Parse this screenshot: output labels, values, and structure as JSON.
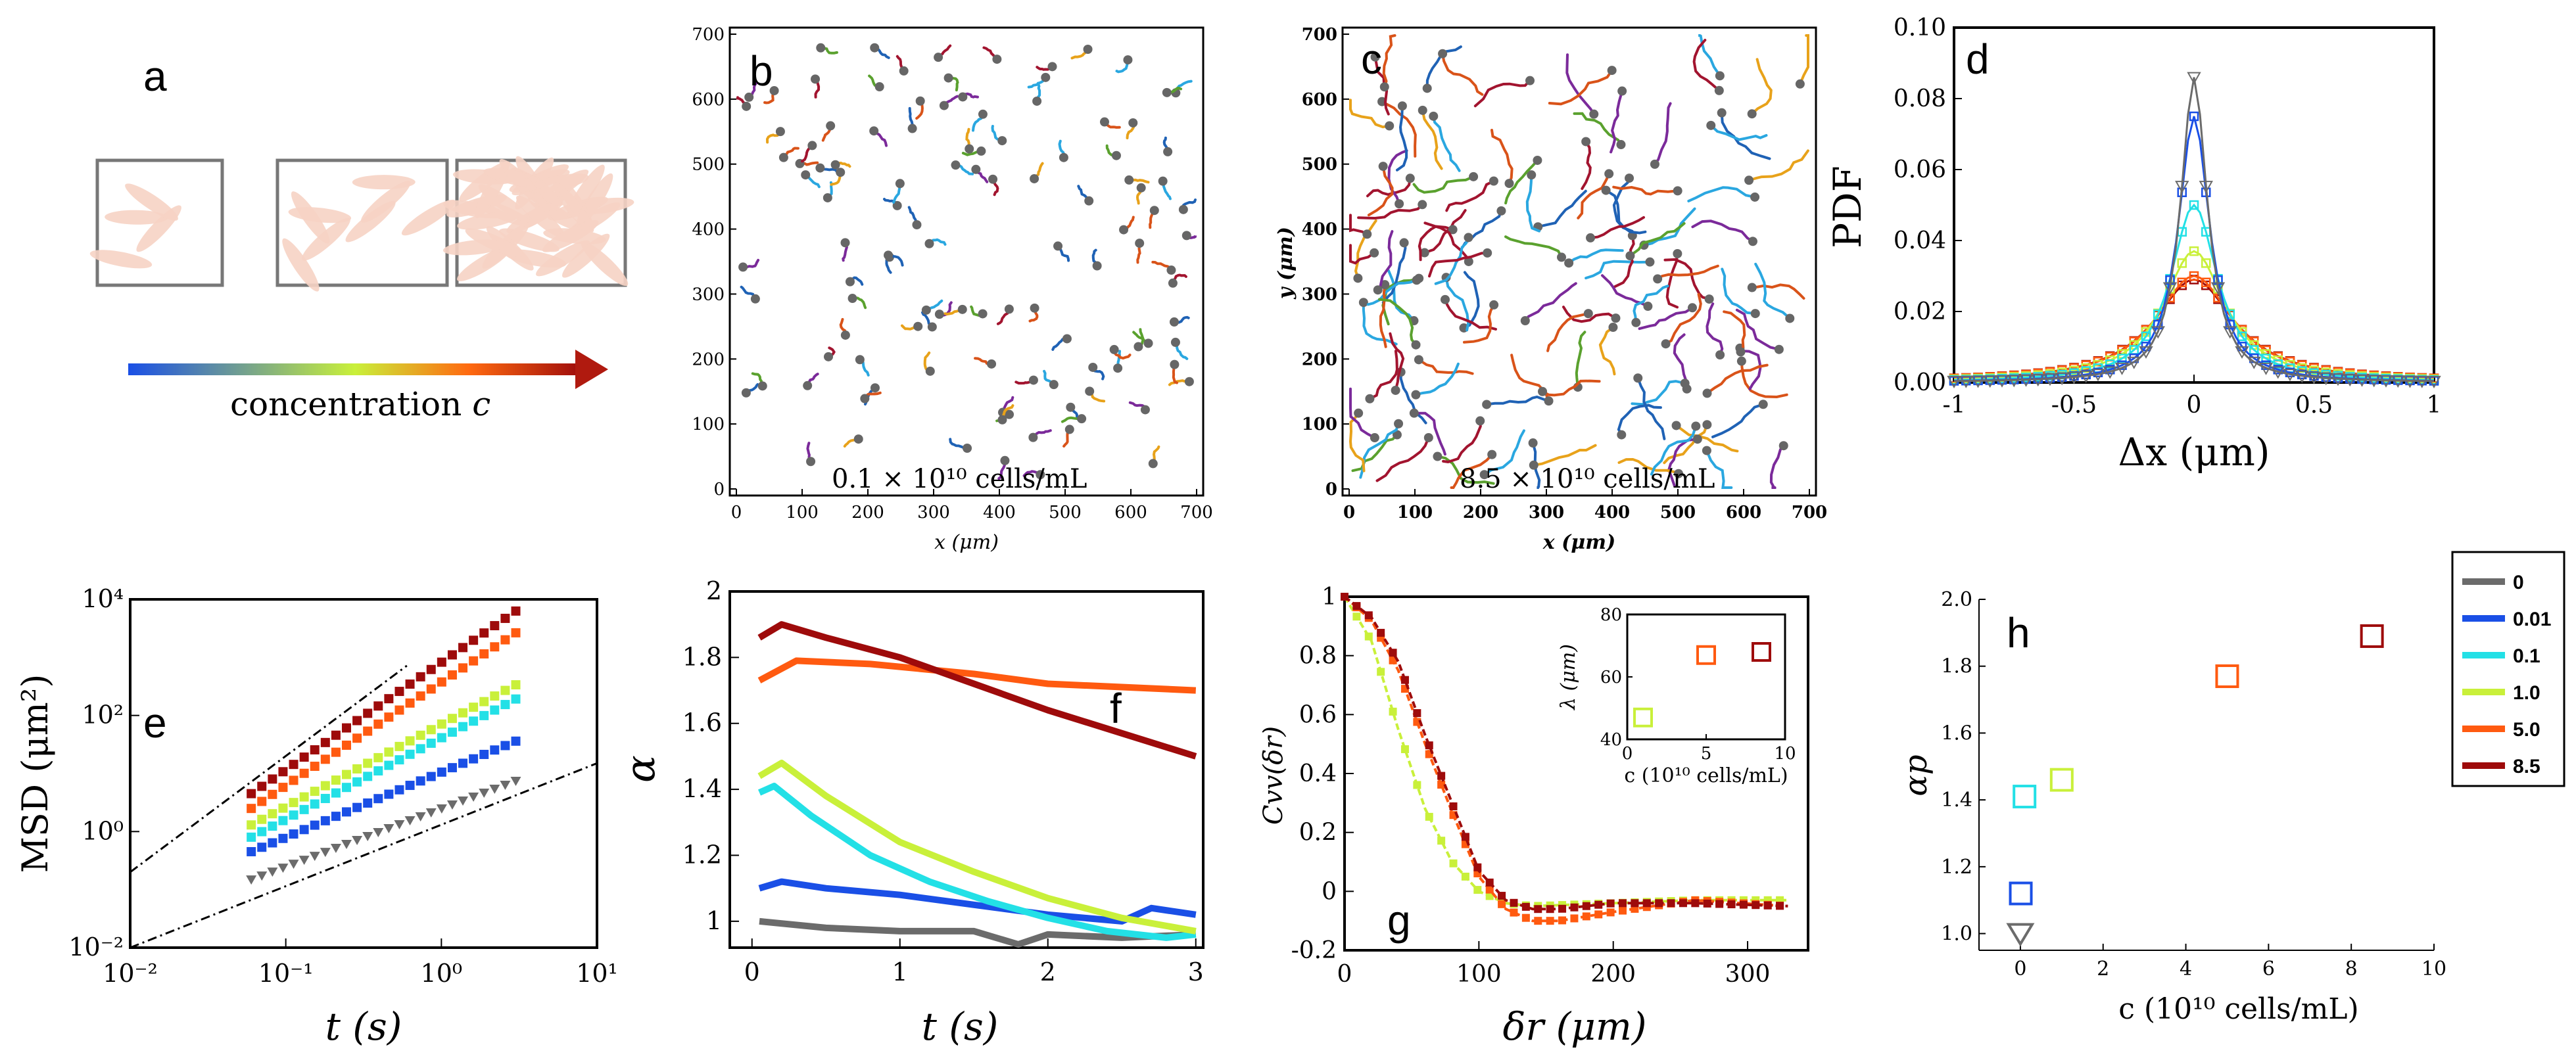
{
  "colors": {
    "c0": "#6b6b6b",
    "c001": "#1a4fe6",
    "c01": "#23e0e6",
    "c1": "#c9f03a",
    "c5": "#ff5a10",
    "c85": "#9e0b0b",
    "cell": "#f6d3c4",
    "traj": [
      "#1f62b5",
      "#2aa7e0",
      "#e8a21a",
      "#7b2a9a",
      "#5aa12e",
      "#d95319",
      "#a2142f"
    ]
  },
  "panels": {
    "a": {
      "letter": "a",
      "arrow_label_prefix": "concentration ",
      "arrow_label_var": "c"
    },
    "b": {
      "letter": "b",
      "annotation": "0.1 × 10¹⁰ cells/mL",
      "xlabel": "x (μm)",
      "x_ticks": [
        "0",
        "100",
        "200",
        "300",
        "400",
        "500",
        "600",
        "700"
      ],
      "y_ticks": [
        "0",
        "100",
        "200",
        "300",
        "400",
        "500",
        "600",
        "700"
      ]
    },
    "c": {
      "letter": "c",
      "annotation": "8.5 × 10¹⁰ cells/mL",
      "xlabel": "x (μm)",
      "ylabel": "y (μm)",
      "x_ticks": [
        "0",
        "100",
        "200",
        "300",
        "400",
        "500",
        "600",
        "700"
      ],
      "y_ticks": [
        "0",
        "100",
        "200",
        "300",
        "400",
        "500",
        "600",
        "700"
      ]
    },
    "d": {
      "letter": "d",
      "xlabel": "Δx (μm)",
      "ylabel": "PDF",
      "x_ticks": [
        "-1",
        "-0.5",
        "0",
        "0.5",
        "1"
      ],
      "y_ticks": [
        "0.00",
        "0.02",
        "0.04",
        "0.06",
        "0.08",
        "0.10"
      ]
    },
    "e": {
      "letter": "e",
      "xlabel": "t (s)",
      "ylabel": "MSD (μm²)",
      "x_ticks": [
        "10⁻²",
        "10⁻¹",
        "10⁰",
        "10¹"
      ],
      "y_ticks": [
        "10⁻²",
        "10⁰",
        "10²",
        "10⁴"
      ]
    },
    "f": {
      "letter": "f",
      "xlabel": "t (s)",
      "ylabel": "α",
      "x_ticks": [
        "0",
        "1",
        "2",
        "3"
      ],
      "y_ticks": [
        "1",
        "1.2",
        "1.4",
        "1.6",
        "1.8",
        "2"
      ]
    },
    "g": {
      "letter": "g",
      "xlabel": "δr (μm)",
      "ylabel": "Cvv(δr)",
      "x_ticks": [
        "0",
        "100",
        "200",
        "300"
      ],
      "y_ticks": [
        "-0.2",
        "0",
        "0.2",
        "0.4",
        "0.6",
        "0.8",
        "1"
      ],
      "inset": {
        "xlabel": "c (10¹⁰ cells/mL)",
        "ylabel": "λ (μm)",
        "x_ticks": [
          "0",
          "5",
          "10"
        ],
        "y_ticks": [
          "40",
          "60",
          "80"
        ]
      }
    },
    "h": {
      "letter": "h",
      "xlabel": "c (10¹⁰ cells/mL)",
      "ylabel": "αp",
      "x_ticks": [
        "0",
        "2",
        "4",
        "6",
        "8",
        "10"
      ],
      "y_ticks": [
        "1.0",
        "1.2",
        "1.4",
        "1.6",
        "1.8",
        "2.0"
      ]
    }
  },
  "legend": {
    "entries": [
      "0",
      "0.01",
      "0.1",
      "1.0",
      "5.0",
      "8.5"
    ]
  },
  "chart_data": [
    {
      "panel": "d",
      "type": "line",
      "title": "",
      "xlabel": "Δx (μm)",
      "ylabel": "PDF",
      "xlim": [
        -1,
        1
      ],
      "ylim": [
        0,
        0.1
      ],
      "series": [
        {
          "name": "0",
          "peak": 0.086,
          "width": 0.085
        },
        {
          "name": "0.01",
          "peak": 0.075,
          "width": 0.1
        },
        {
          "name": "0.1",
          "peak": 0.05,
          "width": 0.15
        },
        {
          "name": "1.0",
          "peak": 0.037,
          "width": 0.2
        },
        {
          "name": "5.0",
          "peak": 0.03,
          "width": 0.25
        },
        {
          "name": "8.5",
          "peak": 0.029,
          "width": 0.26
        }
      ]
    },
    {
      "panel": "e",
      "type": "scatter",
      "title": "",
      "xlabel": "t (s)",
      "ylabel": "MSD (μm²)",
      "xscale": "log",
      "yscale": "log",
      "xlim": [
        0.01,
        10
      ],
      "ylim": [
        0.01,
        10000
      ],
      "series": [
        {
          "name": "0",
          "at_t0_06": 0.15,
          "slope": 1.0
        },
        {
          "name": "0.01",
          "at_t0_06": 0.45,
          "slope": 1.12
        },
        {
          "name": "0.1",
          "at_t0_06": 0.8,
          "slope": 1.4
        },
        {
          "name": "1.0",
          "at_t0_06": 1.3,
          "slope": 1.42
        },
        {
          "name": "5.0",
          "at_t0_06": 2.5,
          "slope": 1.78
        },
        {
          "name": "8.5",
          "at_t0_06": 4.5,
          "slope": 1.85
        }
      ],
      "guides": [
        {
          "label": "slope 2 guide"
        },
        {
          "label": "slope 1 guide"
        }
      ]
    },
    {
      "panel": "f",
      "type": "line",
      "title": "",
      "xlabel": "t (s)",
      "ylabel": "α",
      "xlim": [
        -0.15,
        3.05
      ],
      "ylim": [
        0.92,
        2.0
      ],
      "series": [
        {
          "name": "0",
          "x": [
            0.05,
            0.5,
            1.0,
            1.5,
            1.8,
            2.0,
            2.5,
            3.0
          ],
          "y": [
            1.0,
            0.98,
            0.97,
            0.97,
            0.93,
            0.96,
            0.95,
            0.96
          ]
        },
        {
          "name": "0.01",
          "x": [
            0.05,
            0.2,
            0.5,
            1.0,
            1.5,
            2.0,
            2.5,
            2.7,
            3.0
          ],
          "y": [
            1.1,
            1.12,
            1.1,
            1.08,
            1.05,
            1.02,
            1.0,
            1.04,
            1.02
          ]
        },
        {
          "name": "0.1",
          "x": [
            0.05,
            0.15,
            0.4,
            0.8,
            1.2,
            1.6,
            2.0,
            2.4,
            2.8,
            3.0
          ],
          "y": [
            1.39,
            1.41,
            1.32,
            1.2,
            1.12,
            1.06,
            1.01,
            0.97,
            0.95,
            0.96
          ]
        },
        {
          "name": "1.0",
          "x": [
            0.05,
            0.2,
            0.5,
            1.0,
            1.5,
            2.0,
            2.5,
            3.0
          ],
          "y": [
            1.44,
            1.48,
            1.38,
            1.24,
            1.15,
            1.07,
            1.01,
            0.97
          ]
        },
        {
          "name": "5.0",
          "x": [
            0.05,
            0.3,
            0.8,
            1.5,
            2.0,
            2.5,
            3.0
          ],
          "y": [
            1.73,
            1.79,
            1.78,
            1.75,
            1.72,
            1.71,
            1.7
          ]
        },
        {
          "name": "8.5",
          "x": [
            0.05,
            0.2,
            0.5,
            1.0,
            1.5,
            2.0,
            2.5,
            3.0
          ],
          "y": [
            1.86,
            1.9,
            1.86,
            1.8,
            1.72,
            1.64,
            1.57,
            1.5
          ]
        }
      ]
    },
    {
      "panel": "g",
      "type": "line",
      "title": "",
      "xlabel": "δr (μm)",
      "ylabel": "Cvv(δr)",
      "xlim": [
        0,
        345
      ],
      "ylim": [
        -0.2,
        1.0
      ],
      "series": [
        {
          "name": "1.0",
          "x": [
            0,
            20,
            40,
            60,
            80,
            100,
            120,
            140,
            200,
            260,
            330
          ],
          "y": [
            1.0,
            0.85,
            0.55,
            0.28,
            0.1,
            0.0,
            -0.04,
            -0.05,
            -0.04,
            -0.03,
            -0.03
          ]
        },
        {
          "name": "5.0",
          "x": [
            0,
            20,
            40,
            60,
            80,
            100,
            120,
            140,
            160,
            200,
            260,
            330
          ],
          "y": [
            1.0,
            0.92,
            0.75,
            0.5,
            0.27,
            0.05,
            -0.06,
            -0.1,
            -0.1,
            -0.07,
            -0.03,
            -0.05
          ]
        },
        {
          "name": "8.5",
          "x": [
            0,
            20,
            40,
            60,
            80,
            100,
            120,
            140,
            160,
            200,
            260,
            330
          ],
          "y": [
            1.0,
            0.93,
            0.78,
            0.53,
            0.3,
            0.07,
            -0.03,
            -0.06,
            -0.06,
            -0.04,
            -0.04,
            -0.05
          ]
        }
      ],
      "inset": {
        "xlabel": "c (10¹⁰ cells/mL)",
        "ylabel": "λ (μm)",
        "xlim": [
          0,
          10
        ],
        "ylim": [
          40,
          80
        ],
        "points": [
          {
            "name": "1.0",
            "x": 1.0,
            "y": 47
          },
          {
            "name": "5.0",
            "x": 5.0,
            "y": 67
          },
          {
            "name": "8.5",
            "x": 8.5,
            "y": 68
          }
        ]
      }
    },
    {
      "panel": "h",
      "type": "scatter",
      "title": "",
      "xlabel": "c (10¹⁰ cells/mL)",
      "ylabel": "αp",
      "xlim": [
        -1,
        10
      ],
      "ylim": [
        0.95,
        2.0
      ],
      "points": [
        {
          "name": "0",
          "x": 0,
          "y": 1.0
        },
        {
          "name": "0.01",
          "x": 0.01,
          "y": 1.12
        },
        {
          "name": "0.1",
          "x": 0.1,
          "y": 1.41
        },
        {
          "name": "1.0",
          "x": 1.0,
          "y": 1.46
        },
        {
          "name": "5.0",
          "x": 5.0,
          "y": 1.77
        },
        {
          "name": "8.5",
          "x": 8.5,
          "y": 1.89
        }
      ]
    }
  ]
}
